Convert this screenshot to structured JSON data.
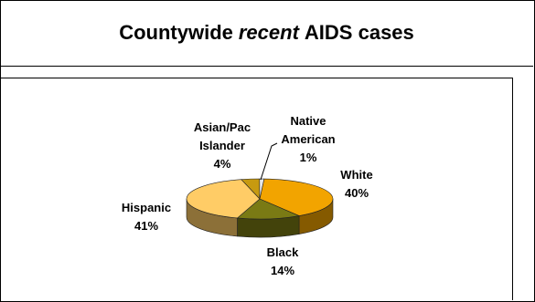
{
  "title": {
    "prefix": "Countywide",
    "emphasis": "recent",
    "suffix": "AIDS cases"
  },
  "chart_data": {
    "type": "pie",
    "title": "Countywide recent AIDS cases",
    "slices": [
      {
        "label_lines": [
          "White",
          "40%"
        ],
        "value": 40,
        "color": "#F2A400"
      },
      {
        "label_lines": [
          "Black",
          "14%"
        ],
        "value": 14,
        "color": "#7A7A14"
      },
      {
        "label_lines": [
          "Hispanic",
          "41%"
        ],
        "value": 41,
        "color": "#FFCC66"
      },
      {
        "label_lines": [
          "Asian/Pac",
          "Islander",
          "4%"
        ],
        "value": 4,
        "color": "#C79A10"
      },
      {
        "label_lines": [
          "Native",
          "American",
          "1%"
        ],
        "value": 1,
        "color": "#E8E8E8"
      }
    ]
  }
}
